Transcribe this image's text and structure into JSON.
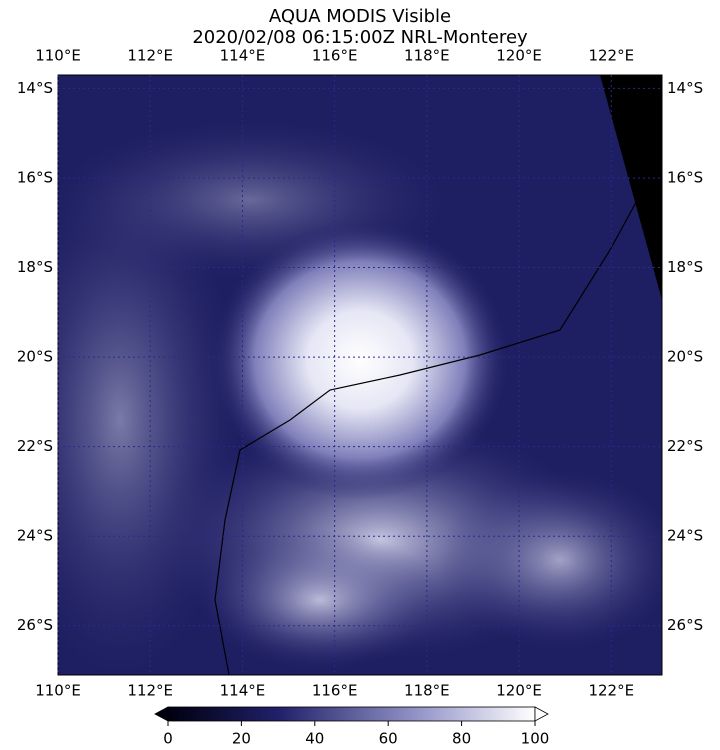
{
  "title": [
    "AQUA MODIS Visible",
    "2020/02/08 06:15:00Z NRL-Monterey"
  ],
  "map": {
    "lonlim": [
      110,
      123.1
    ],
    "latlim": [
      -13.7,
      -27.1
    ],
    "lon_ticks": [
      {
        "value": 110,
        "label": "110°E"
      },
      {
        "value": 112,
        "label": "112°E"
      },
      {
        "value": 114,
        "label": "114°E"
      },
      {
        "value": 116,
        "label": "116°E"
      },
      {
        "value": 118,
        "label": "118°E"
      },
      {
        "value": 120,
        "label": "120°E"
      },
      {
        "value": 122,
        "label": "122°E"
      }
    ],
    "lat_ticks": [
      {
        "value": -14,
        "label": "14°S"
      },
      {
        "value": -16,
        "label": "16°S"
      },
      {
        "value": -18,
        "label": "18°S"
      },
      {
        "value": -20,
        "label": "20°S"
      },
      {
        "value": -22,
        "label": "22°S"
      },
      {
        "value": -24,
        "label": "24°S"
      },
      {
        "value": -26,
        "label": "26°S"
      }
    ]
  },
  "colorbar": {
    "range": [
      0,
      100
    ],
    "ticks": [
      0,
      20,
      40,
      60,
      80,
      100
    ]
  }
}
